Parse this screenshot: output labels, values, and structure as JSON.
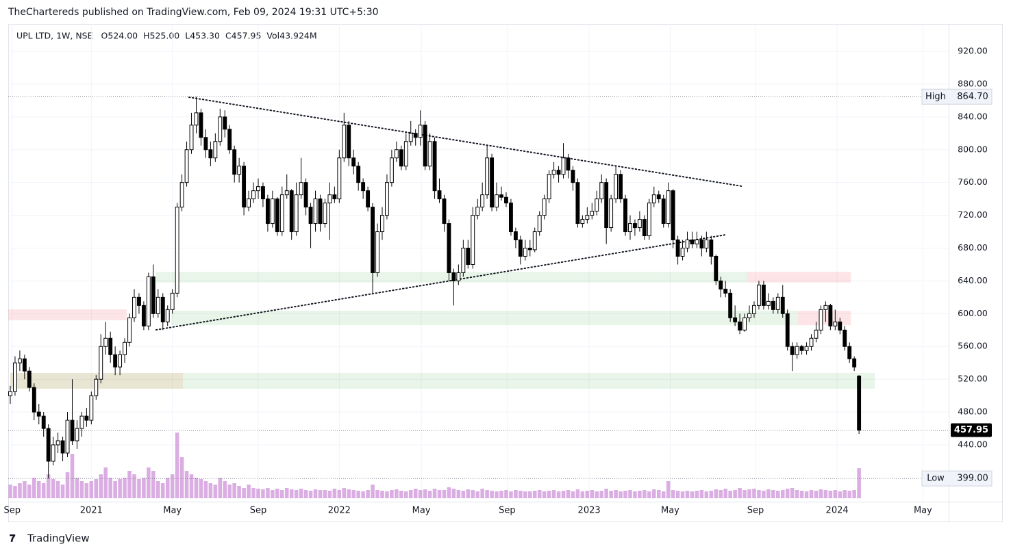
{
  "chart_data": {
    "type": "candlestick",
    "publisher": "TheChartereds published on TradingView.com, Feb 09, 2024 19:31 UTC+5:30",
    "symbol": "UPL LTD, 1W, NSE",
    "ohlc_labels": [
      "O524.00",
      "H525.00",
      "L453.30",
      "C457.95",
      "Vol43.924M"
    ],
    "brand": "TradingView",
    "up_color": "#ffffff",
    "down_color": "#000000",
    "wick_color": "#000000",
    "volume_color": "rgba(206,147,216,0.75)",
    "grid": true,
    "xlim": [
      -0.43,
      196.8
    ],
    "xticks": [
      {
        "value": 0.4,
        "label": "Sep"
      },
      {
        "value": 17,
        "label": "2021"
      },
      {
        "value": 34,
        "label": "May"
      },
      {
        "value": 52,
        "label": "Sep"
      },
      {
        "value": 69,
        "label": "2022"
      },
      {
        "value": 86.2,
        "label": "May"
      },
      {
        "value": 104.2,
        "label": "Sep"
      },
      {
        "value": 121.4,
        "label": "2023"
      },
      {
        "value": 138.4,
        "label": "May"
      },
      {
        "value": 156.3,
        "label": "Sep"
      },
      {
        "value": 173.4,
        "label": "2024"
      },
      {
        "value": 191.4,
        "label": "May"
      }
    ],
    "ylim": [
      370.7,
      953.4
    ],
    "yticks": [
      {
        "value": 440,
        "label": "440.00"
      },
      {
        "value": 480,
        "label": "480.00"
      },
      {
        "value": 520,
        "label": "520.00"
      },
      {
        "value": 560,
        "label": "560.00"
      },
      {
        "value": 600,
        "label": "600.00"
      },
      {
        "value": 640,
        "label": "640.00"
      },
      {
        "value": 680,
        "label": "680.00"
      },
      {
        "value": 720,
        "label": "720.00"
      },
      {
        "value": 760,
        "label": "760.00"
      },
      {
        "value": 800,
        "label": "800.00"
      },
      {
        "value": 840,
        "label": "840.00"
      },
      {
        "value": 880,
        "label": "880.00"
      },
      {
        "value": 920,
        "label": "920.00"
      }
    ],
    "volume_lim": [
      0,
      100
    ],
    "markers": [
      {
        "label": "High",
        "value": 864.7,
        "value_label": "864.70"
      },
      {
        "label": "Low",
        "value": 399,
        "value_label": "399.00"
      }
    ],
    "last": {
      "value": 457.95,
      "value_label": "457.95"
    },
    "zones": [
      {
        "x": [
          0,
          181.3
        ],
        "y": [
          508.5,
          527.7
        ],
        "color": "rgba(76,175,80,0.13)"
      },
      {
        "x": [
          0,
          36.2
        ],
        "y": [
          508.5,
          527.7
        ],
        "color": "rgba(242,120,69,0.13)"
      },
      {
        "x": [
          -0.4,
          24.4
        ],
        "y": [
          592,
          605.3
        ],
        "color": "rgba(242,54,69,0.13)"
      },
      {
        "x": [
          30.6,
          154.5
        ],
        "y": [
          638,
          651
        ],
        "color": "rgba(76,175,80,0.13)"
      },
      {
        "x": [
          33.8,
          165.2
        ],
        "y": [
          586,
          603.6
        ],
        "color": "rgba(76,175,80,0.13)"
      },
      {
        "x": [
          154.5,
          176.3
        ],
        "y": [
          638,
          651
        ],
        "color": "rgba(242,54,69,0.13)"
      },
      {
        "x": [
          165.2,
          176.3
        ],
        "y": [
          586,
          603.6
        ],
        "color": "rgba(242,54,69,0.13)"
      }
    ],
    "trendlines": [
      {
        "x": [
          37.5,
          153.3
        ],
        "y": [
          864,
          755.6
        ]
      },
      {
        "x": [
          30.6,
          150.1
        ],
        "y": [
          580.3,
          696.3
        ]
      }
    ],
    "candles": [
      [
        500,
        512,
        490,
        505
      ],
      [
        505,
        548,
        500,
        540
      ],
      [
        540,
        555,
        530,
        545
      ],
      [
        545,
        550,
        520,
        530
      ],
      [
        530,
        535,
        505,
        510
      ],
      [
        510,
        515,
        470,
        480
      ],
      [
        480,
        490,
        465,
        475
      ],
      [
        475,
        480,
        450,
        460
      ],
      [
        460,
        465,
        399,
        420
      ],
      [
        420,
        450,
        415,
        440
      ],
      [
        440,
        455,
        430,
        445
      ],
      [
        445,
        450,
        420,
        430
      ],
      [
        430,
        480,
        425,
        470
      ],
      [
        470,
        520,
        440,
        445
      ],
      [
        445,
        470,
        435,
        460
      ],
      [
        460,
        480,
        450,
        475
      ],
      [
        475,
        485,
        462,
        470
      ],
      [
        470,
        505,
        465,
        500
      ],
      [
        500,
        525,
        495,
        520
      ],
      [
        520,
        575,
        515,
        560
      ],
      [
        560,
        590,
        550,
        570
      ],
      [
        570,
        578,
        540,
        550
      ],
      [
        550,
        560,
        525,
        535
      ],
      [
        535,
        555,
        525,
        550
      ],
      [
        550,
        570,
        540,
        565
      ],
      [
        565,
        600,
        560,
        595
      ],
      [
        595,
        630,
        590,
        620
      ],
      [
        620,
        625,
        600,
        610
      ],
      [
        610,
        615,
        580,
        585
      ],
      [
        585,
        650,
        580,
        645
      ],
      [
        645,
        660,
        595,
        600
      ],
      [
        600,
        630,
        595,
        620
      ],
      [
        620,
        625,
        580,
        590
      ],
      [
        590,
        610,
        585,
        605
      ],
      [
        605,
        630,
        600,
        625
      ],
      [
        625,
        735,
        620,
        730
      ],
      [
        730,
        770,
        725,
        760
      ],
      [
        760,
        810,
        755,
        800
      ],
      [
        800,
        845,
        795,
        830
      ],
      [
        830,
        864.7,
        820,
        845
      ],
      [
        845,
        850,
        805,
        815
      ],
      [
        815,
        825,
        790,
        800
      ],
      [
        800,
        810,
        780,
        790
      ],
      [
        790,
        820,
        785,
        810
      ],
      [
        810,
        850,
        805,
        840
      ],
      [
        840,
        848,
        815,
        825
      ],
      [
        825,
        830,
        795,
        800
      ],
      [
        800,
        805,
        760,
        770
      ],
      [
        770,
        790,
        760,
        780
      ],
      [
        780,
        785,
        720,
        730
      ],
      [
        730,
        750,
        725,
        740
      ],
      [
        740,
        760,
        735,
        750
      ],
      [
        750,
        765,
        740,
        755
      ],
      [
        755,
        760,
        730,
        740
      ],
      [
        740,
        745,
        700,
        710
      ],
      [
        710,
        750,
        705,
        740
      ],
      [
        740,
        742,
        695,
        700
      ],
      [
        700,
        755,
        695,
        745
      ],
      [
        745,
        770,
        740,
        750
      ],
      [
        750,
        752,
        690,
        700
      ],
      [
        700,
        760,
        695,
        745
      ],
      [
        745,
        790,
        740,
        760
      ],
      [
        760,
        765,
        720,
        730
      ],
      [
        730,
        735,
        680,
        710
      ],
      [
        710,
        750,
        700,
        740
      ],
      [
        740,
        745,
        700,
        710
      ],
      [
        710,
        740,
        705,
        735
      ],
      [
        735,
        760,
        690,
        745
      ],
      [
        745,
        755,
        735,
        740
      ],
      [
        740,
        800,
        735,
        790
      ],
      [
        790,
        845,
        785,
        830
      ],
      [
        830,
        835,
        780,
        790
      ],
      [
        790,
        800,
        770,
        780
      ],
      [
        780,
        785,
        750,
        760
      ],
      [
        760,
        765,
        740,
        750
      ],
      [
        750,
        755,
        725,
        730
      ],
      [
        730,
        735,
        625,
        650
      ],
      [
        650,
        710,
        645,
        700
      ],
      [
        700,
        730,
        690,
        720
      ],
      [
        720,
        770,
        715,
        760
      ],
      [
        760,
        800,
        755,
        790
      ],
      [
        790,
        810,
        785,
        800
      ],
      [
        800,
        805,
        775,
        780
      ],
      [
        780,
        820,
        775,
        810
      ],
      [
        810,
        835,
        805,
        820
      ],
      [
        820,
        825,
        805,
        815
      ],
      [
        815,
        848,
        805,
        830
      ],
      [
        830,
        835,
        775,
        780
      ],
      [
        780,
        820,
        775,
        810
      ],
      [
        810,
        815,
        740,
        750
      ],
      [
        750,
        765,
        735,
        740
      ],
      [
        740,
        745,
        700,
        710
      ],
      [
        710,
        715,
        640,
        650
      ],
      [
        650,
        655,
        610,
        640
      ],
      [
        640,
        660,
        635,
        650
      ],
      [
        650,
        690,
        645,
        680
      ],
      [
        680,
        690,
        655,
        660
      ],
      [
        660,
        730,
        655,
        720
      ],
      [
        720,
        740,
        715,
        730
      ],
      [
        730,
        760,
        725,
        745
      ],
      [
        745,
        805,
        740,
        790
      ],
      [
        790,
        795,
        725,
        730
      ],
      [
        730,
        760,
        725,
        745
      ],
      [
        745,
        755,
        738,
        742
      ],
      [
        742,
        748,
        730,
        735
      ],
      [
        735,
        740,
        695,
        700
      ],
      [
        700,
        705,
        680,
        690
      ],
      [
        690,
        695,
        660,
        670
      ],
      [
        670,
        690,
        665,
        680
      ],
      [
        680,
        690,
        670,
        678
      ],
      [
        678,
        705,
        675,
        700
      ],
      [
        700,
        725,
        695,
        720
      ],
      [
        720,
        745,
        715,
        740
      ],
      [
        740,
        775,
        735,
        770
      ],
      [
        770,
        785,
        765,
        775
      ],
      [
        775,
        780,
        760,
        770
      ],
      [
        770,
        808,
        765,
        790
      ],
      [
        790,
        795,
        765,
        775
      ],
      [
        775,
        780,
        750,
        760
      ],
      [
        760,
        765,
        705,
        710
      ],
      [
        710,
        720,
        705,
        715
      ],
      [
        715,
        730,
        710,
        720
      ],
      [
        720,
        735,
        715,
        725
      ],
      [
        725,
        750,
        720,
        740
      ],
      [
        740,
        770,
        735,
        760
      ],
      [
        760,
        765,
        685,
        705
      ],
      [
        705,
        745,
        700,
        740
      ],
      [
        740,
        780,
        735,
        770
      ],
      [
        770,
        775,
        735,
        740
      ],
      [
        740,
        745,
        695,
        700
      ],
      [
        700,
        720,
        690,
        710
      ],
      [
        710,
        715,
        695,
        705
      ],
      [
        705,
        725,
        700,
        715
      ],
      [
        715,
        720,
        690,
        695
      ],
      [
        695,
        740,
        690,
        735
      ],
      [
        735,
        755,
        730,
        745
      ],
      [
        745,
        750,
        735,
        740
      ],
      [
        740,
        745,
        705,
        710
      ],
      [
        710,
        760,
        705,
        750
      ],
      [
        750,
        752,
        680,
        690
      ],
      [
        690,
        695,
        660,
        670
      ],
      [
        670,
        690,
        665,
        680
      ],
      [
        680,
        700,
        675,
        690
      ],
      [
        690,
        700,
        680,
        685
      ],
      [
        685,
        700,
        680,
        690
      ],
      [
        690,
        695,
        670,
        680
      ],
      [
        680,
        700,
        675,
        690
      ],
      [
        690,
        695,
        660,
        670
      ],
      [
        670,
        672,
        635,
        640
      ],
      [
        640,
        645,
        620,
        630
      ],
      [
        630,
        640,
        620,
        625
      ],
      [
        625,
        630,
        590,
        595
      ],
      [
        595,
        610,
        585,
        590
      ],
      [
        590,
        600,
        575,
        580
      ],
      [
        580,
        600,
        578,
        595
      ],
      [
        595,
        610,
        590,
        600
      ],
      [
        600,
        615,
        595,
        610
      ],
      [
        610,
        640,
        605,
        635
      ],
      [
        635,
        640,
        605,
        610
      ],
      [
        610,
        625,
        605,
        615
      ],
      [
        615,
        620,
        600,
        605
      ],
      [
        605,
        625,
        600,
        620
      ],
      [
        620,
        635,
        595,
        600
      ],
      [
        600,
        605,
        555,
        560
      ],
      [
        560,
        565,
        530,
        550
      ],
      [
        550,
        565,
        545,
        560
      ],
      [
        560,
        562,
        550,
        555
      ],
      [
        555,
        565,
        550,
        560
      ],
      [
        560,
        575,
        555,
        570
      ],
      [
        570,
        590,
        565,
        580
      ],
      [
        580,
        610,
        575,
        605
      ],
      [
        605,
        615,
        590,
        610
      ],
      [
        610,
        612,
        580,
        585
      ],
      [
        585,
        605,
        580,
        590
      ],
      [
        590,
        595,
        575,
        580
      ],
      [
        580,
        585,
        555,
        560
      ],
      [
        560,
        565,
        540,
        545
      ],
      [
        545,
        548,
        530,
        535
      ],
      [
        524,
        525,
        453.3,
        457.95
      ]
    ],
    "volumes": [
      20,
      18,
      22,
      25,
      20,
      30,
      25,
      22,
      35,
      28,
      25,
      20,
      38,
      65,
      30,
      25,
      22,
      25,
      28,
      35,
      45,
      30,
      25,
      28,
      30,
      40,
      35,
      28,
      30,
      45,
      40,
      25,
      22,
      30,
      35,
      96,
      60,
      40,
      35,
      30,
      28,
      25,
      22,
      20,
      30,
      25,
      20,
      22,
      18,
      15,
      20,
      15,
      14,
      13,
      15,
      12,
      14,
      12,
      15,
      13,
      12,
      14,
      12,
      11,
      13,
      12,
      12,
      11,
      14,
      12,
      15,
      13,
      12,
      11,
      10,
      12,
      20,
      12,
      11,
      10,
      12,
      13,
      11,
      10,
      12,
      14,
      12,
      13,
      11,
      14,
      12,
      12,
      16,
      14,
      12,
      11,
      13,
      12,
      10,
      14,
      12,
      11,
      10,
      11,
      12,
      10,
      12,
      11,
      10,
      10,
      11,
      12,
      10,
      11,
      12,
      10,
      11,
      12,
      10,
      13,
      10,
      11,
      12,
      10,
      11,
      14,
      11,
      12,
      10,
      11,
      12,
      10,
      11,
      12,
      10,
      13,
      12,
      10,
      25,
      12,
      11,
      10,
      11,
      10,
      11,
      12,
      10,
      11,
      13,
      12,
      14,
      11,
      12,
      15,
      12,
      13,
      14,
      12,
      11,
      13,
      12,
      11,
      12,
      14,
      15,
      12,
      11,
      10,
      12,
      11,
      13,
      12,
      11,
      12,
      10,
      12,
      11,
      12,
      43.924
    ]
  }
}
